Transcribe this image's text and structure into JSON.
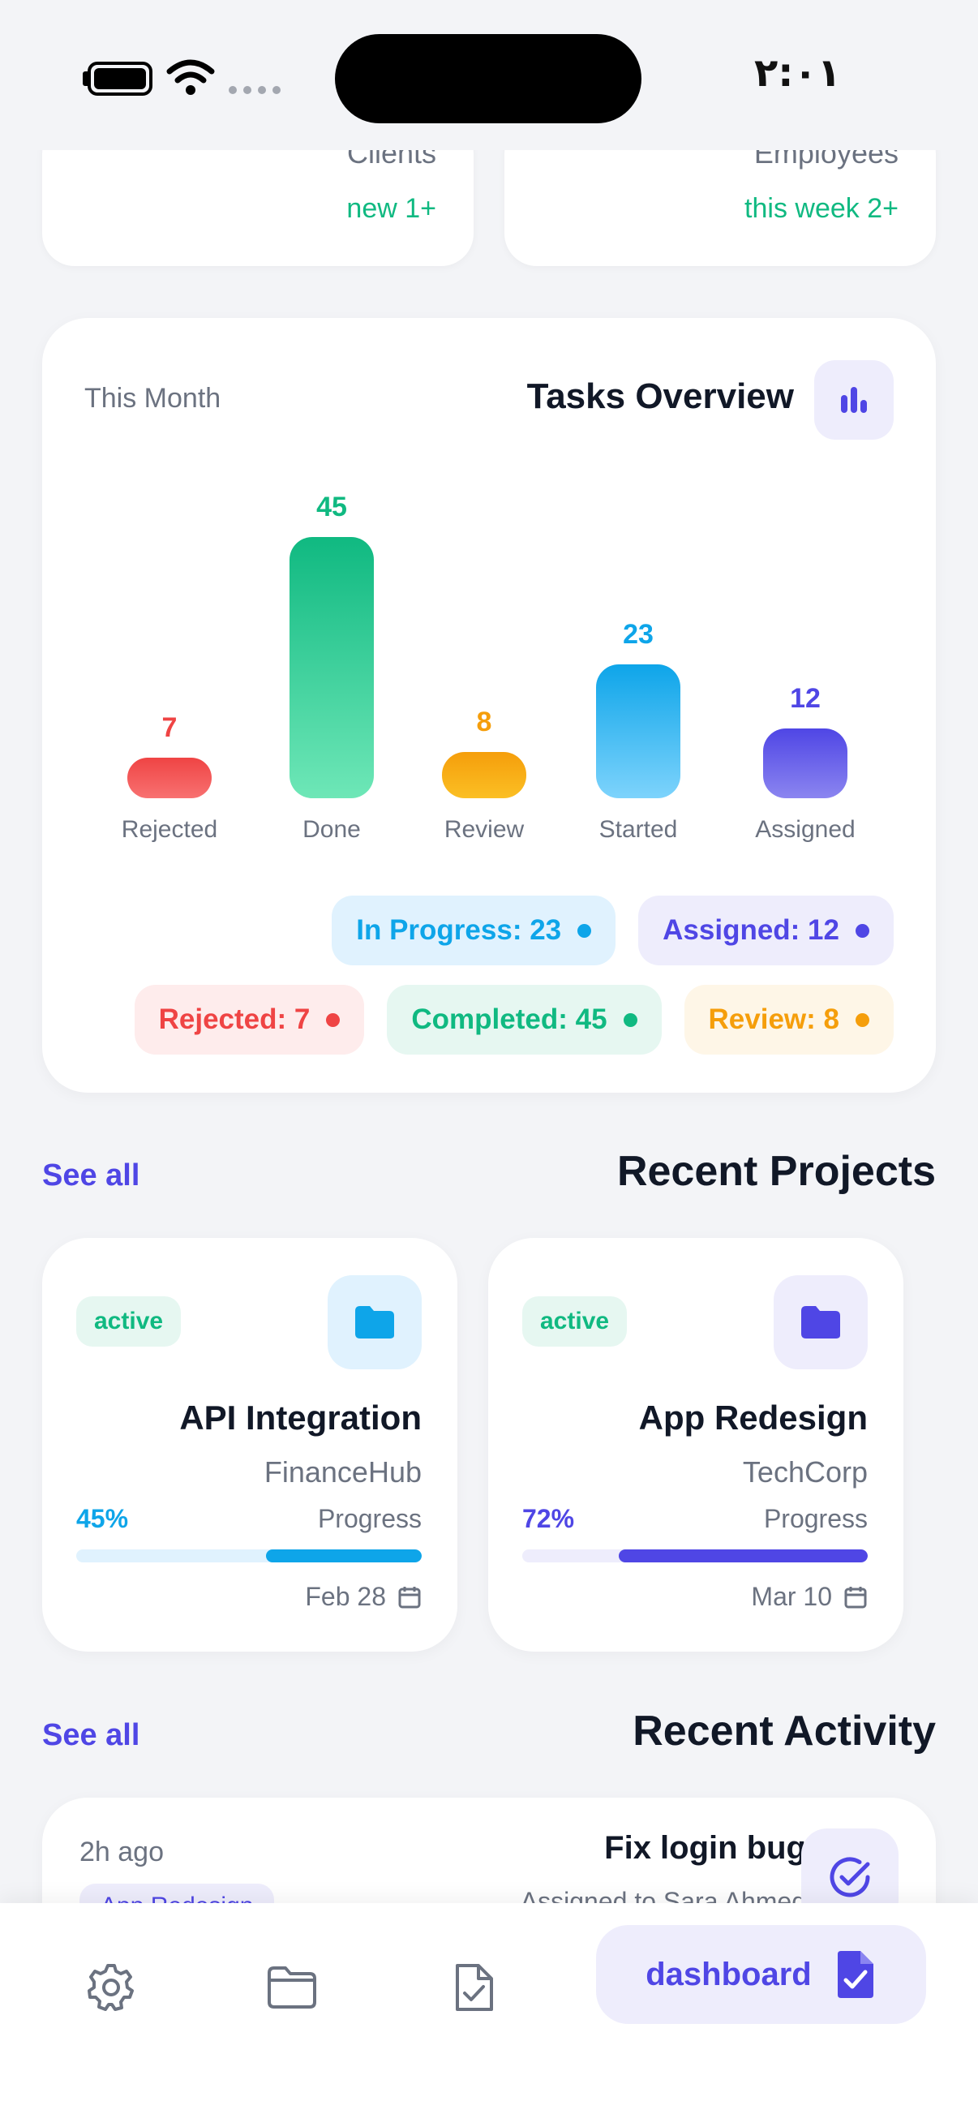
{
  "status_bar": {
    "time": "٢:٠١"
  },
  "stats": {
    "clients": {
      "label": "Clients",
      "delta": "new 1+"
    },
    "employees": {
      "label": "Employees",
      "delta": "this week 2+"
    }
  },
  "tasks": {
    "period": "This Month",
    "title": "Tasks Overview",
    "icon": "bar-chart-icon",
    "legend": {
      "in_progress": "In Progress: 23",
      "assigned": "Assigned: 12",
      "rejected": "Rejected: 7",
      "completed": "Completed: 45",
      "review": "Review: 8"
    }
  },
  "chart_data": {
    "type": "bar",
    "categories": [
      "Rejected",
      "Done",
      "Review",
      "Started",
      "Assigned"
    ],
    "values": [
      7,
      45,
      8,
      23,
      12
    ],
    "colors": [
      "#EF4444",
      "#10B981",
      "#F59E0B",
      "#0EA5E9",
      "#4F46E5"
    ],
    "title": "Tasks Overview",
    "xlabel": "",
    "ylabel": "",
    "ylim": [
      0,
      45
    ],
    "grid": false,
    "labels": [
      "7",
      "45",
      "8",
      "23",
      "12"
    ]
  },
  "projects_section": {
    "title": "Recent Projects",
    "see_all": "See all"
  },
  "projects": [
    {
      "status": "active",
      "name": "API Integration",
      "client": "FinanceHub",
      "progress_text": "45%",
      "progress": 0.45,
      "progress_label": "Progress",
      "date": "Feb 28",
      "accent": "#0EA5E9",
      "track": "#E0F2FE",
      "icon_bg": "#E0F2FE",
      "icon": "folder-icon"
    },
    {
      "status": "active",
      "name": "App Redesign",
      "client": "TechCorp",
      "progress_text": "72%",
      "progress": 0.72,
      "progress_label": "Progress",
      "date": "Mar 10",
      "accent": "#4F46E5",
      "track": "#EEEDFC",
      "icon_bg": "#EEEDFC",
      "icon": "folder-icon"
    }
  ],
  "activity_section": {
    "title": "Recent Activity",
    "see_all": "See all"
  },
  "activity": {
    "time": "2h ago",
    "tag": "App Redesign",
    "title": "Fix login bug",
    "subtitle": "Assigned to Sara Ahmed",
    "icon": "check-circle-icon"
  },
  "nav": {
    "items": [
      "settings-icon",
      "folder-icon",
      "clipboard-check-icon"
    ],
    "active_label": "dashboard",
    "active_icon": "document-check-icon"
  }
}
